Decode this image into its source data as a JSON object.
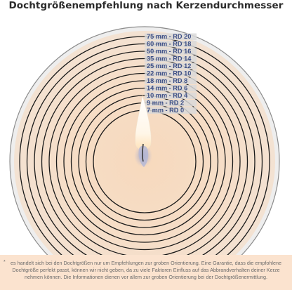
{
  "title": "Dochtgrößenempfehlung nach Kerzendurchmesser",
  "sizes": [
    {
      "diameter": 75,
      "label": "75 mm - RD 20"
    },
    {
      "diameter": 60,
      "label": "60 mm - RD 18"
    },
    {
      "diameter": 50,
      "label": "50 mm - RD 16"
    },
    {
      "diameter": 35,
      "label": "35 mm - RD 14"
    },
    {
      "diameter": 25,
      "label": "25 mm - RD 12"
    },
    {
      "diameter": 22,
      "label": "22 mm - RD 10"
    },
    {
      "diameter": 18,
      "label": "18 mm - RD 8"
    },
    {
      "diameter": 14,
      "label": "14 mm - RD 6"
    },
    {
      "diameter": 10,
      "label": "10 mm - RD 4"
    },
    {
      "diameter": 9,
      "label": "9 mm - RD 2"
    },
    {
      "diameter": 7,
      "label": "7 mm - RD 0"
    }
  ],
  "colors": {
    "label_bg": "#d9d9d9",
    "label_text": "#3d4f86",
    "ring": "#1a1a1a",
    "glow": "#f3cfb0",
    "footnote_bg": "#fbe3cf"
  },
  "footnote": {
    "marker": "*",
    "text": "es handelt sich bei den Dochtgrößen nur um Empfehlungen zur groben Orientierung. Eine Garantie, dass die empfohlene Dochtgröße perfekt passt, können wir nicht geben, da zu viele Faktoren Einfluss auf das Abbrandverhalten deiner Kerze nehmen können. Die Informationen dienen vor allem zur groben Orientierung bei der Dochtgrößenermittlung."
  },
  "icons": [
    "candle-flame-icon"
  ]
}
